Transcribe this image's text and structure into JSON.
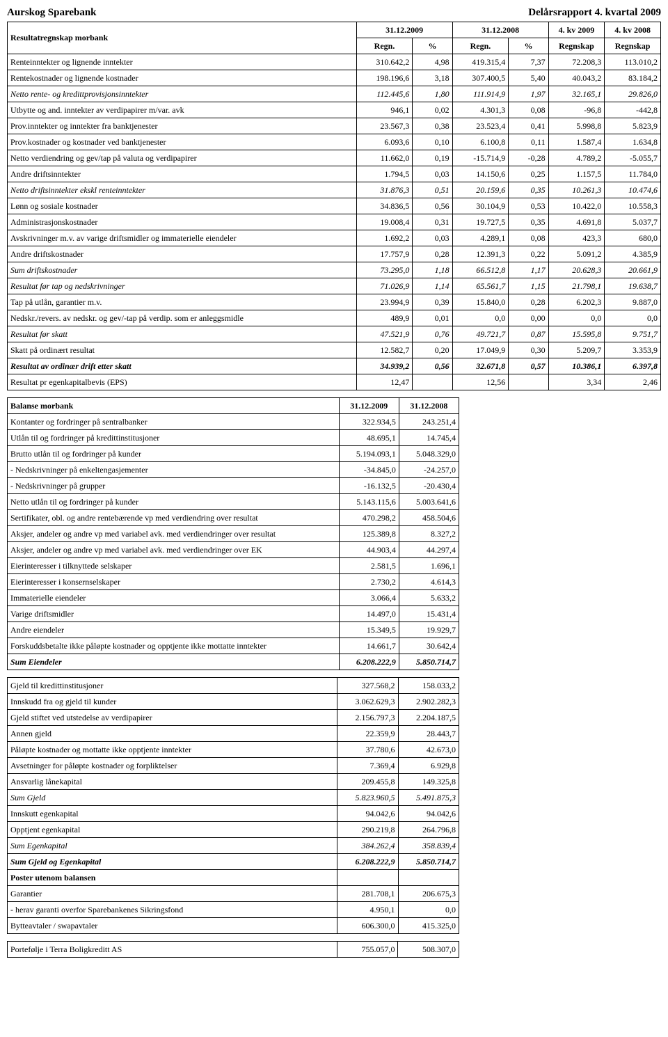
{
  "page": {
    "title_left": "Aurskog Sparebank",
    "title_right": "Delårsrapport 4. kvartal 2009"
  },
  "income": {
    "heading": "Resultatregnskap morbank",
    "header1": {
      "c1": "31.12.2009",
      "c2": "31.12.2008",
      "c3": "4. kv 2009",
      "c4": "4. kv 2008"
    },
    "header2": {
      "r": "Regn.",
      "p": "%",
      "rs": "Regnskap"
    },
    "rows": [
      {
        "label": "Renteinntekter og lignende inntekter",
        "v1": "310.642,2",
        "p1": "4,98",
        "v2": "419.315,4",
        "p2": "7,37",
        "v3": "72.208,3",
        "v4": "113.010,2"
      },
      {
        "label": "Rentekostnader og lignende kostnader",
        "v1": "198.196,6",
        "p1": "3,18",
        "v2": "307.400,5",
        "p2": "5,40",
        "v3": "40.043,2",
        "v4": "83.184,2"
      },
      {
        "label": "Netto rente- og kredittprovisjonsinntekter",
        "v1": "112.445,6",
        "p1": "1,80",
        "v2": "111.914,9",
        "p2": "1,97",
        "v3": "32.165,1",
        "v4": "29.826,0",
        "style": "italic"
      },
      {
        "label": "Utbytte og and. inntekter av verdipapirer m/var. avk",
        "v1": "946,1",
        "p1": "0,02",
        "v2": "4.301,3",
        "p2": "0,08",
        "v3": "-96,8",
        "v4": "-442,8"
      },
      {
        "label": "Prov.inntekter og inntekter fra banktjenester",
        "v1": "23.567,3",
        "p1": "0,38",
        "v2": "23.523,4",
        "p2": "0,41",
        "v3": "5.998,8",
        "v4": "5.823,9"
      },
      {
        "label": "Prov.kostnader og kostnader ved banktjenester",
        "v1": "6.093,6",
        "p1": "0,10",
        "v2": "6.100,8",
        "p2": "0,11",
        "v3": "1.587,4",
        "v4": "1.634,8"
      },
      {
        "label": "Netto verdiendring og gev/tap på valuta og verdipapirer",
        "v1": "11.662,0",
        "p1": "0,19",
        "v2": "-15.714,9",
        "p2": "-0,28",
        "v3": "4.789,2",
        "v4": "-5.055,7"
      },
      {
        "label": "Andre driftsinntekter",
        "v1": "1.794,5",
        "p1": "0,03",
        "v2": "14.150,6",
        "p2": "0,25",
        "v3": "1.157,5",
        "v4": "11.784,0"
      },
      {
        "label": "Netto driftsinntekter ekskl renteinntekter",
        "v1": "31.876,3",
        "p1": "0,51",
        "v2": "20.159,6",
        "p2": "0,35",
        "v3": "10.261,3",
        "v4": "10.474,6",
        "style": "italic"
      },
      {
        "label": "Lønn og sosiale kostnader",
        "v1": "34.836,5",
        "p1": "0,56",
        "v2": "30.104,9",
        "p2": "0,53",
        "v3": "10.422,0",
        "v4": "10.558,3"
      },
      {
        "label": "Administrasjonskostnader",
        "v1": "19.008,4",
        "p1": "0,31",
        "v2": "19.727,5",
        "p2": "0,35",
        "v3": "4.691,8",
        "v4": "5.037,7"
      },
      {
        "label": "Avskrivninger m.v. av varige driftsmidler og immaterielle eiendeler",
        "v1": "1.692,2",
        "p1": "0,03",
        "v2": "4.289,1",
        "p2": "0,08",
        "v3": "423,3",
        "v4": "680,0"
      },
      {
        "label": "Andre driftskostnader",
        "v1": "17.757,9",
        "p1": "0,28",
        "v2": "12.391,3",
        "p2": "0,22",
        "v3": "5.091,2",
        "v4": "4.385,9"
      },
      {
        "label": "Sum driftskostnader",
        "v1": "73.295,0",
        "p1": "1,18",
        "v2": "66.512,8",
        "p2": "1,17",
        "v3": "20.628,3",
        "v4": "20.661,9",
        "style": "italic"
      },
      {
        "label": "Resultat før tap og nedskrivninger",
        "v1": "71.026,9",
        "p1": "1,14",
        "v2": "65.561,7",
        "p2": "1,15",
        "v3": "21.798,1",
        "v4": "19.638,7",
        "style": "italic"
      },
      {
        "label": "Tap på utlån, garantier m.v.",
        "v1": "23.994,9",
        "p1": "0,39",
        "v2": "15.840,0",
        "p2": "0,28",
        "v3": "6.202,3",
        "v4": "9.887,0"
      },
      {
        "label": "Nedskr./revers. av nedskr. og gev/-tap på verdip. som er anleggsmidle",
        "v1": "489,9",
        "p1": "0,01",
        "v2": "0,0",
        "p2": "0,00",
        "v3": "0,0",
        "v4": "0,0"
      },
      {
        "label": "Resultat før skatt",
        "v1": "47.521,9",
        "p1": "0,76",
        "v2": "49.721,7",
        "p2": "0,87",
        "v3": "15.595,8",
        "v4": "9.751,7",
        "style": "italic"
      },
      {
        "label": "Skatt på ordinært resultat",
        "v1": "12.582,7",
        "p1": "0,20",
        "v2": "17.049,9",
        "p2": "0,30",
        "v3": "5.209,7",
        "v4": "3.353,9"
      },
      {
        "label": "Resultat av ordinær drift etter skatt",
        "v1": "34.939,2",
        "p1": "0,56",
        "v2": "32.671,8",
        "p2": "0,57",
        "v3": "10.386,1",
        "v4": "6.397,8",
        "style": "bolditalic"
      },
      {
        "label": "Resultat pr egenkapitalbevis (EPS)",
        "v1": "12,47",
        "p1": "",
        "v2": "12,56",
        "p2": "",
        "v3": "3,34",
        "v4": "2,46"
      }
    ]
  },
  "balance": {
    "heading": "Balanse morbank",
    "h1": "31.12.2009",
    "h2": "31.12.2008",
    "assets": [
      {
        "label": "Kontanter og fordringer på sentralbanker",
        "v1": "322.934,5",
        "v2": "243.251,4"
      },
      {
        "label": "Utlån til og fordringer på kredittinstitusjoner",
        "v1": "48.695,1",
        "v2": "14.745,4"
      },
      {
        "label": "Brutto utlån til og fordringer på kunder",
        "v1": "5.194.093,1",
        "v2": "5.048.329,0"
      },
      {
        "label": " - Nedskrivninger på enkeltengasjementer",
        "v1": "-34.845,0",
        "v2": "-24.257,0"
      },
      {
        "label": " - Nedskrivninger på grupper",
        "v1": "-16.132,5",
        "v2": "-20.430,4"
      },
      {
        "label": "Netto utlån til og fordringer på kunder",
        "v1": "5.143.115,6",
        "v2": "5.003.641,6"
      },
      {
        "label": "Sertifikater, obl. og andre rentebærende vp med verdiendring over resultat",
        "v1": "470.298,2",
        "v2": "458.504,6"
      },
      {
        "label": "Aksjer, andeler og andre vp med variabel avk. med verdiendringer over resultat",
        "v1": "125.389,8",
        "v2": "8.327,2"
      },
      {
        "label": "Aksjer, andeler og andre vp med variabel avk. med verdiendringer over EK",
        "v1": "44.903,4",
        "v2": "44.297,4"
      },
      {
        "label": "Eierinteresser i tilknyttede selskaper",
        "v1": "2.581,5",
        "v2": "1.696,1"
      },
      {
        "label": "Eierinteresser i konsernselskaper",
        "v1": "2.730,2",
        "v2": "4.614,3"
      },
      {
        "label": "Immaterielle eiendeler",
        "v1": "3.066,4",
        "v2": "5.633,2"
      },
      {
        "label": "Varige driftsmidler",
        "v1": "14.497,0",
        "v2": "15.431,4"
      },
      {
        "label": "Andre eiendeler",
        "v1": "15.349,5",
        "v2": "19.929,7"
      },
      {
        "label": "Forskuddsbetalte ikke påløpte kostnader og opptjente ikke mottatte inntekter",
        "v1": "14.661,7",
        "v2": "30.642,4"
      },
      {
        "label": "Sum Eiendeler",
        "v1": "6.208.222,9",
        "v2": "5.850.714,7",
        "style": "bolditalic"
      }
    ],
    "liab": [
      {
        "label": "Gjeld til kredittinstitusjoner",
        "v1": "327.568,2",
        "v2": "158.033,2"
      },
      {
        "label": "Innskudd fra og gjeld til kunder",
        "v1": "3.062.629,3",
        "v2": "2.902.282,3"
      },
      {
        "label": "Gjeld stiftet ved utstedelse av verdipapirer",
        "v1": "2.156.797,3",
        "v2": "2.204.187,5"
      },
      {
        "label": "Annen gjeld",
        "v1": "22.359,9",
        "v2": "28.443,7"
      },
      {
        "label": "Påløpte kostnader og mottatte ikke opptjente inntekter",
        "v1": "37.780,6",
        "v2": "42.673,0"
      },
      {
        "label": "Avsetninger for påløpte kostnader og forpliktelser",
        "v1": "7.369,4",
        "v2": "6.929,8"
      },
      {
        "label": "Ansvarlig lånekapital",
        "v1": "209.455,8",
        "v2": "149.325,8"
      },
      {
        "label": "Sum Gjeld",
        "v1": "5.823.960,5",
        "v2": "5.491.875,3",
        "style": "italic"
      },
      {
        "label": "Innskutt egenkapital",
        "v1": "94.042,6",
        "v2": "94.042,6"
      },
      {
        "label": "Opptjent egenkapital",
        "v1": "290.219,8",
        "v2": "264.796,8"
      },
      {
        "label": "Sum Egenkapital",
        "v1": "384.262,4",
        "v2": "358.839,4",
        "style": "italic"
      },
      {
        "label": "Sum Gjeld og Egenkapital",
        "v1": "6.208.222,9",
        "v2": "5.850.714,7",
        "style": "bolditalic"
      }
    ],
    "off_heading": "Poster utenom balansen",
    "off": [
      {
        "label": "Garantier",
        "v1": "281.708,1",
        "v2": "206.675,3"
      },
      {
        "label": " - herav garanti overfor Sparebankenes Sikringsfond",
        "v1": "4.950,1",
        "v2": "0,0"
      },
      {
        "label": "Bytteavtaler / swapavtaler",
        "v1": "606.300,0",
        "v2": "415.325,0"
      }
    ],
    "footer": {
      "label": "Portefølje i Terra Boligkreditt AS",
      "v1": "755.057,0",
      "v2": "508.307,0"
    }
  }
}
